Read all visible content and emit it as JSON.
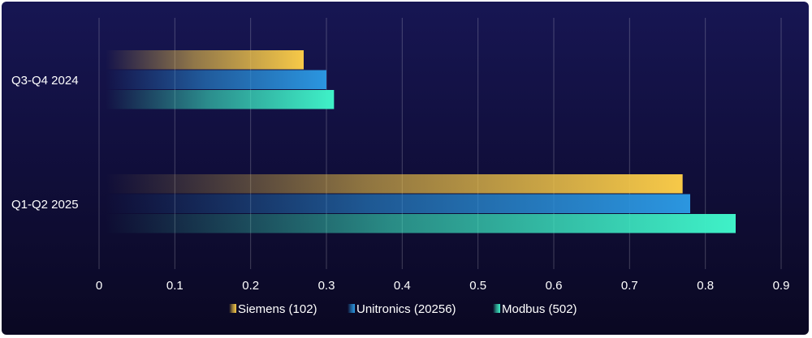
{
  "chart_data": {
    "type": "bar",
    "orientation": "horizontal",
    "categories": [
      "Q3-Q4 2024",
      "Q1-Q2 2025"
    ],
    "series": [
      {
        "name": "Siemens (102)",
        "values": [
          0.27,
          0.77
        ],
        "color": "#f7c948"
      },
      {
        "name": "Unitronics (20256)",
        "values": [
          0.3,
          0.78
        ],
        "color": "#2b96e0"
      },
      {
        "name": "Modbus (502)",
        "values": [
          0.31,
          0.84
        ],
        "color": "#3ff2c8"
      }
    ],
    "xlim": [
      0,
      0.9
    ],
    "xticks": [
      "0",
      "0.1",
      "0.2",
      "0.3",
      "0.4",
      "0.5",
      "0.6",
      "0.7",
      "0.8",
      "0.9"
    ],
    "grid": "vertical",
    "legend_position": "bottom-center",
    "title": "",
    "xlabel": "",
    "ylabel": ""
  }
}
